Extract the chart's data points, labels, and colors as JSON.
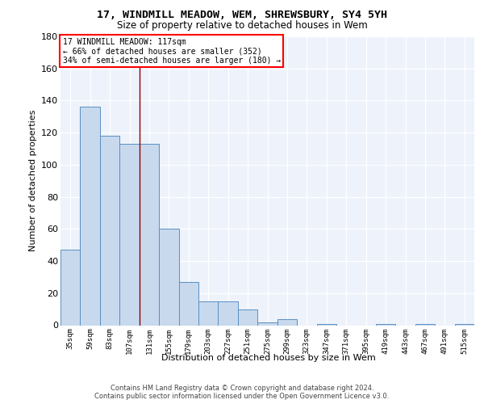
{
  "title1": "17, WINDMILL MEADOW, WEM, SHREWSBURY, SY4 5YH",
  "title2": "Size of property relative to detached houses in Wem",
  "xlabel": "Distribution of detached houses by size in Wem",
  "ylabel": "Number of detached properties",
  "categories": [
    "35sqm",
    "59sqm",
    "83sqm",
    "107sqm",
    "131sqm",
    "155sqm",
    "179sqm",
    "203sqm",
    "227sqm",
    "251sqm",
    "275sqm",
    "299sqm",
    "323sqm",
    "347sqm",
    "371sqm",
    "395sqm",
    "419sqm",
    "443sqm",
    "467sqm",
    "491sqm",
    "515sqm"
  ],
  "values": [
    47,
    136,
    118,
    113,
    113,
    60,
    27,
    15,
    15,
    10,
    2,
    4,
    0,
    1,
    0,
    0,
    1,
    0,
    1,
    0,
    1
  ],
  "bar_color": "#c8d9ee",
  "bar_edge_color": "#5a8fc0",
  "red_line_x": 3.5,
  "annotation_lines": [
    "17 WINDMILL MEADOW: 117sqm",
    "← 66% of detached houses are smaller (352)",
    "34% of semi-detached houses are larger (180) →"
  ],
  "ylim": [
    0,
    180
  ],
  "yticks": [
    0,
    20,
    40,
    60,
    80,
    100,
    120,
    140,
    160,
    180
  ],
  "bg_color": "#edf2fb",
  "grid_color": "#d0d8e8",
  "fig_bg": "#ffffff",
  "footer": "Contains HM Land Registry data © Crown copyright and database right 2024.\nContains public sector information licensed under the Open Government Licence v3.0."
}
